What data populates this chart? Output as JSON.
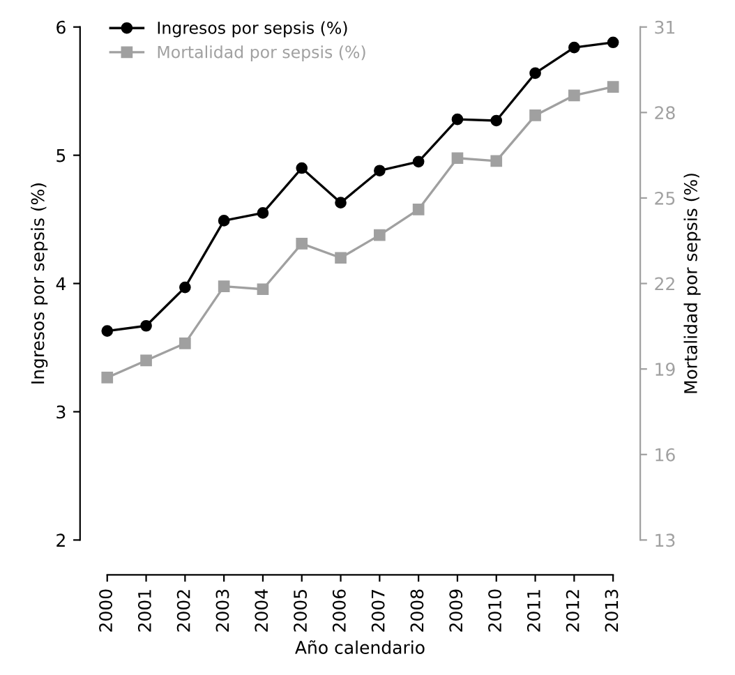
{
  "chart_data": {
    "type": "line",
    "xlabel": "Año calendario",
    "ylabel": "Ingresos por sepsis (%)",
    "y2label": "Mortalidad por sepsis (%)",
    "categories": [
      "2000",
      "2001",
      "2002",
      "2003",
      "2004",
      "2005",
      "2006",
      "2007",
      "2008",
      "2009",
      "2010",
      "2011",
      "2012",
      "2013"
    ],
    "series": [
      {
        "name": "Ingresos por sepsis (%)",
        "color": "#000000",
        "marker": "circle",
        "values": [
          3.63,
          3.67,
          3.97,
          4.49,
          4.55,
          4.9,
          4.63,
          4.88,
          4.95,
          5.28,
          5.27,
          5.64,
          5.84,
          5.88
        ]
      },
      {
        "name": "Mortalidad por sepsis (%)",
        "color": "#a0a0a0",
        "marker": "square",
        "axis": "y2",
        "values": [
          18.7,
          19.3,
          19.9,
          21.9,
          21.8,
          23.4,
          22.9,
          23.7,
          24.6,
          26.4,
          26.3,
          27.9,
          28.6,
          28.9
        ]
      }
    ],
    "ylim": [
      2,
      6
    ],
    "yticks": [
      2,
      3,
      4,
      5,
      6
    ],
    "y2lim": [
      13,
      31
    ],
    "y2ticks": [
      13,
      16,
      19,
      22,
      25,
      28,
      31
    ],
    "legend": "top left",
    "grid": false
  }
}
